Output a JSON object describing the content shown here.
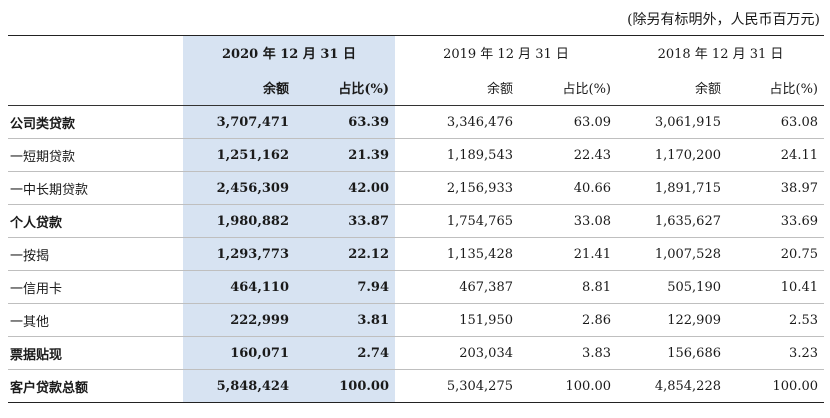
{
  "unit_note": "(除另有标明外，人民币百万元)",
  "header": {
    "years": [
      "2020 年 12 月 31 日",
      "2019 年 12 月 31 日",
      "2018 年 12 月 31 日"
    ],
    "amount_label": "余额",
    "ratio_label": "占比(%)"
  },
  "colors": {
    "highlight_column": "#d7e3f2"
  },
  "rows": [
    {
      "label": "公司类贷款",
      "bold": true,
      "v2020": "3,707,471",
      "r2020": "63.39",
      "v2019": "3,346,476",
      "r2019": "63.09",
      "v2018": "3,061,915",
      "r2018": "63.08"
    },
    {
      "label": "一短期贷款",
      "bold": false,
      "v2020": "1,251,162",
      "r2020": "21.39",
      "v2019": "1,189,543",
      "r2019": "22.43",
      "v2018": "1,170,200",
      "r2018": "24.11"
    },
    {
      "label": "一中长期贷款",
      "bold": false,
      "v2020": "2,456,309",
      "r2020": "42.00",
      "v2019": "2,156,933",
      "r2019": "40.66",
      "v2018": "1,891,715",
      "r2018": "38.97"
    },
    {
      "label": "个人贷款",
      "bold": true,
      "v2020": "1,980,882",
      "r2020": "33.87",
      "v2019": "1,754,765",
      "r2019": "33.08",
      "v2018": "1,635,627",
      "r2018": "33.69"
    },
    {
      "label": "一按揭",
      "bold": false,
      "v2020": "1,293,773",
      "r2020": "22.12",
      "v2019": "1,135,428",
      "r2019": "21.41",
      "v2018": "1,007,528",
      "r2018": "20.75"
    },
    {
      "label": "一信用卡",
      "bold": false,
      "v2020": "464,110",
      "r2020": "7.94",
      "v2019": "467,387",
      "r2019": "8.81",
      "v2018": "505,190",
      "r2018": "10.41"
    },
    {
      "label": "一其他",
      "bold": false,
      "v2020": "222,999",
      "r2020": "3.81",
      "v2019": "151,950",
      "r2019": "2.86",
      "v2018": "122,909",
      "r2018": "2.53"
    },
    {
      "label": "票据贴现",
      "bold": true,
      "v2020": "160,071",
      "r2020": "2.74",
      "v2019": "203,034",
      "r2019": "3.83",
      "v2018": "156,686",
      "r2018": "3.23"
    },
    {
      "label": "客户贷款总额",
      "bold": true,
      "v2020": "5,848,424",
      "r2020": "100.00",
      "v2019": "5,304,275",
      "r2019": "100.00",
      "v2018": "4,854,228",
      "r2018": "100.00"
    }
  ]
}
